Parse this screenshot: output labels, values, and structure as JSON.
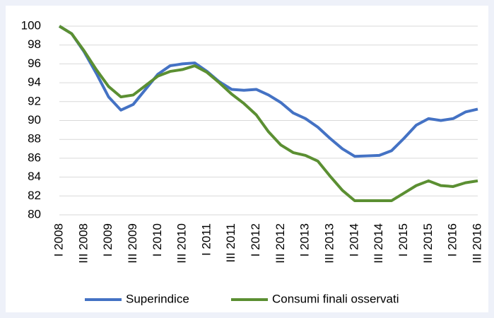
{
  "chart_data": {
    "type": "line",
    "categories": [
      "I 2008",
      null,
      "III 2008",
      null,
      "I 2009",
      null,
      "III 2009",
      null,
      "I 2010",
      null,
      "III 2010",
      null,
      "I 2011",
      null,
      "III 2011",
      null,
      "I 2012",
      null,
      "III 2012",
      null,
      "I 2013",
      null,
      "III 2013",
      null,
      "I 2014",
      null,
      "III 2014",
      null,
      "I 2015",
      null,
      "III 2015",
      null,
      "I 2016",
      null,
      "III 2016"
    ],
    "series": [
      {
        "name": "Superindice",
        "color": "#4472c4",
        "values": [
          100,
          99.2,
          97.3,
          95,
          92.5,
          91.1,
          91.7,
          93.3,
          94.9,
          95.8,
          96.0,
          96.1,
          95.2,
          94.1,
          93.3,
          93.2,
          93.3,
          92.7,
          91.9,
          90.8,
          90.2,
          89.3,
          88.1,
          87.0,
          86.2,
          86.25,
          86.3,
          86.8,
          88.1,
          89.5,
          90.2,
          90.0,
          90.2,
          90.9,
          91.2
        ]
      },
      {
        "name": "Consumi finali osservati",
        "color": "#5b8f32",
        "values": [
          100,
          99.2,
          97.4,
          95.4,
          93.6,
          92.5,
          92.7,
          93.7,
          94.7,
          95.2,
          95.4,
          95.8,
          95.1,
          94.0,
          92.8,
          91.8,
          90.6,
          88.8,
          87.4,
          86.6,
          86.3,
          85.7,
          84.1,
          82.6,
          81.5,
          81.5,
          81.5,
          81.5,
          82.3,
          83.1,
          83.6,
          83.1,
          83.0,
          83.4,
          83.6
        ]
      }
    ],
    "ylim": [
      80,
      100
    ],
    "yticks": [
      80,
      82,
      84,
      86,
      88,
      90,
      92,
      94,
      96,
      98,
      100
    ],
    "grid": true,
    "legend": "bottom"
  }
}
